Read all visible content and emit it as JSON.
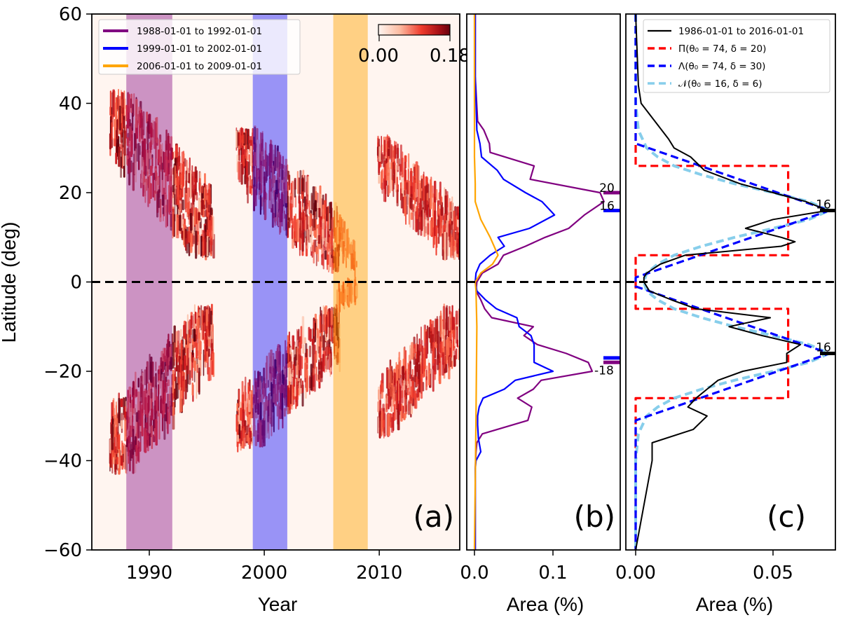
{
  "chart_data": [
    {
      "panel": "a",
      "type": "heatmap",
      "title": "",
      "xlabel": "Year",
      "ylabel": "Latitude (deg)",
      "xlim": [
        1985,
        2017
      ],
      "ylim": [
        -60,
        60
      ],
      "xticks": [
        "1990",
        "2000",
        "2010"
      ],
      "xtick_values": [
        1990,
        2000,
        2010
      ],
      "yticks": [
        "60",
        "40",
        "20",
        "0",
        "−20",
        "−40",
        "−60"
      ],
      "ytick_values": [
        60,
        40,
        20,
        0,
        -20,
        -40,
        -60
      ],
      "colorbar": {
        "min_label": "0.00",
        "max_label": "0.18",
        "min": 0.0,
        "max": 0.18,
        "colormap": "Reds"
      },
      "equator_line": 0,
      "shaded_intervals": [
        {
          "label": "1988-01-01 to 1992-01-01",
          "start": 1988.0,
          "end": 1992.0,
          "color": "#800080"
        },
        {
          "label": "1999-01-01 to 2002-01-01",
          "start": 1999.0,
          "end": 2002.0,
          "color": "#0000ff"
        },
        {
          "label": "2006-01-01 to 2009-01-01",
          "start": 2006.0,
          "end": 2009.0,
          "color": "#ffa500"
        }
      ],
      "activity_clusters": [
        {
          "t0": 1986.5,
          "t1": 1995.5,
          "north_lat": [
            8,
            40
          ],
          "south_lat": [
            -40,
            -8
          ],
          "intensity": 0.9
        },
        {
          "t0": 1997.5,
          "t1": 2006.5,
          "north_lat": [
            5,
            32
          ],
          "south_lat": [
            -35,
            -8
          ],
          "intensity": 0.85
        },
        {
          "t0": 2006.2,
          "t1": 2008.0,
          "north_lat": [
            4,
            14
          ],
          "south_lat": [
            -6,
            -2
          ],
          "intensity": 0.35
        },
        {
          "t0": 2009.8,
          "t1": 2017.0,
          "north_lat": [
            8,
            30
          ],
          "south_lat": [
            -32,
            -8
          ],
          "intensity": 0.75
        }
      ],
      "legend": [
        {
          "label": "1988-01-01 to 1992-01-01",
          "color": "#800080"
        },
        {
          "label": "1999-01-01 to 2002-01-01",
          "color": "#0000ff"
        },
        {
          "label": "2006-01-01 to 2009-01-01",
          "color": "#ffa500"
        }
      ],
      "panel_label": "(a)"
    },
    {
      "panel": "b",
      "type": "line",
      "xlabel": "Area (%)",
      "xlim": [
        -0.003,
        0.18
      ],
      "ylim": [
        -60,
        60
      ],
      "xticks": [
        "0.0",
        "0.1"
      ],
      "xtick_values": [
        0.0,
        0.1
      ],
      "series": [
        {
          "name": "1988-01-01 to 1992-01-01",
          "color": "#800080",
          "lat": [
            60,
            46,
            36,
            34,
            31,
            29,
            26,
            23,
            20,
            18,
            15,
            12,
            10,
            8,
            6,
            4,
            2,
            0,
            -2,
            -4,
            -6,
            -8,
            -10,
            -12,
            -14,
            -16,
            -18,
            -20,
            -22,
            -24,
            -26,
            -28,
            -31,
            -34,
            -36,
            -38,
            -42,
            -46,
            -50,
            -60
          ],
          "area": [
            0.001,
            0.001,
            0.004,
            0.012,
            0.019,
            0.02,
            0.076,
            0.071,
            0.16,
            0.165,
            0.14,
            0.12,
            0.09,
            0.065,
            0.037,
            0.03,
            0.01,
            0.003,
            0.002,
            0.008,
            0.013,
            0.022,
            0.075,
            0.063,
            0.08,
            0.117,
            0.145,
            0.15,
            0.085,
            0.075,
            0.055,
            0.073,
            0.068,
            0.01,
            0.003,
            0.002,
            0.001,
            0.001,
            0.001,
            0.001
          ]
        },
        {
          "name": "1999-01-01 to 2002-01-01",
          "color": "#0000ff",
          "lat": [
            60,
            46,
            34,
            31,
            28,
            25,
            23,
            20,
            18,
            15,
            12,
            10,
            8,
            6,
            4,
            2,
            0,
            -2,
            -4,
            -6,
            -8,
            -10,
            -12,
            -14,
            -16,
            -18,
            -20,
            -22,
            -24,
            -26,
            -28,
            -30,
            -32,
            -35,
            -38,
            -40,
            -42,
            -44,
            -60
          ],
          "area": [
            0.001,
            0.001,
            0.003,
            0.007,
            0.009,
            0.029,
            0.037,
            0.065,
            0.086,
            0.102,
            0.07,
            0.03,
            0.038,
            0.02,
            0.007,
            0.002,
            0.001,
            0.003,
            0.014,
            0.028,
            0.054,
            0.057,
            0.072,
            0.076,
            0.076,
            0.076,
            0.1,
            0.052,
            0.038,
            0.011,
            0.006,
            0.004,
            0.004,
            0.005,
            0.008,
            0.002,
            0.001,
            0.001,
            0.001
          ]
        },
        {
          "name": "2006-01-01 to 2009-01-01",
          "color": "#ffa500",
          "lat": [
            60,
            40,
            28,
            22,
            18,
            14,
            10,
            8,
            6,
            4,
            2,
            0,
            -2,
            -10,
            -30,
            -60
          ],
          "area": [
            0.0,
            0.0,
            0.0,
            0.001,
            0.001,
            0.008,
            0.02,
            0.025,
            0.03,
            0.023,
            0.008,
            0.001,
            0.002,
            0.003,
            0.002,
            0.0
          ]
        }
      ],
      "markers": [
        {
          "lat": 20,
          "label": "20",
          "color": "#800080"
        },
        {
          "lat": 16,
          "label": "16",
          "color": "#0000ff"
        },
        {
          "lat": -18,
          "label": "-18",
          "color": "#800080"
        },
        {
          "lat": -17,
          "label": "",
          "color": "#0000ff"
        }
      ],
      "equator_line": 0,
      "panel_label": "(b)"
    },
    {
      "panel": "c",
      "type": "line",
      "xlabel": "Area (%)",
      "xlim": [
        -0.0012,
        0.0735
      ],
      "ylim": [
        -60,
        60
      ],
      "xticks": [
        "0.00",
        "0.05"
      ],
      "xtick_values": [
        0.0,
        0.05
      ],
      "series": [
        {
          "name": "1986-01-01 to 2016-01-01",
          "color": "#000000",
          "style": "solid",
          "lat": [
            60,
            44,
            40,
            36,
            32,
            30,
            28,
            25,
            22,
            20,
            18,
            16,
            14,
            12,
            10,
            9,
            8,
            6,
            4,
            2,
            1,
            0,
            -2,
            -4,
            -6,
            -8,
            -10,
            -12,
            -14,
            -16,
            -18,
            -20,
            -22,
            -24,
            -26,
            -28,
            -30,
            -33,
            -36,
            -40,
            -60
          ],
          "area": [
            0.0,
            0.001,
            0.002,
            0.007,
            0.012,
            0.014,
            0.02,
            0.025,
            0.038,
            0.05,
            0.062,
            0.07,
            0.05,
            0.04,
            0.053,
            0.058,
            0.053,
            0.018,
            0.009,
            0.004,
            0.003,
            0.003,
            0.005,
            0.013,
            0.022,
            0.049,
            0.034,
            0.046,
            0.06,
            0.055,
            0.055,
            0.039,
            0.03,
            0.026,
            0.022,
            0.019,
            0.026,
            0.021,
            0.006,
            0.006,
            0.0
          ]
        },
        {
          "name": "Π(θ₀ = 74, δ = 20)",
          "color": "#ff0000",
          "style": "dashed",
          "lat": [
            60,
            26,
            26,
            6,
            6,
            -6,
            -6,
            -26,
            -26,
            -60
          ],
          "area": [
            0.0,
            0.0,
            0.0555,
            0.0555,
            0.0,
            0.0,
            0.0555,
            0.0555,
            0.0,
            0.0
          ]
        },
        {
          "name": "Λ(θ₀ = 74, δ = 30)",
          "color": "#0000ff",
          "style": "dashed",
          "lat": [
            60,
            31,
            16,
            1,
            0,
            -1,
            -16,
            -31,
            -60
          ],
          "area": [
            0.0,
            0.0,
            0.0705,
            0.0,
            0.0,
            0.0,
            0.0705,
            0.0,
            0.0
          ]
        },
        {
          "name": "𝒩(θ₀ = 16, δ = 6)",
          "color": "#87ceeb",
          "style": "dashed",
          "lat": [
            60,
            40,
            34,
            30,
            28,
            26,
            24,
            22,
            20,
            18,
            16,
            14,
            12,
            10,
            8,
            6,
            4,
            2,
            0,
            -2,
            -4,
            -6,
            -8,
            -10,
            -12,
            -14,
            -16,
            -18,
            -20,
            -22,
            -24,
            -26,
            -28,
            -30,
            -34,
            -40,
            -60
          ],
          "area": [
            0.0,
            0.0,
            0.001,
            0.004,
            0.008,
            0.014,
            0.024,
            0.036,
            0.05,
            0.063,
            0.0705,
            0.063,
            0.05,
            0.036,
            0.024,
            0.014,
            0.008,
            0.004,
            0.003,
            0.004,
            0.008,
            0.014,
            0.024,
            0.036,
            0.05,
            0.063,
            0.0705,
            0.063,
            0.05,
            0.036,
            0.024,
            0.014,
            0.008,
            0.004,
            0.001,
            0.0,
            0.0
          ]
        }
      ],
      "markers": [
        {
          "lat": 16,
          "label": "16",
          "color": "#000000"
        },
        {
          "lat": -16,
          "label": "16",
          "color": "#000000"
        }
      ],
      "equator_line": 0,
      "legend": [
        {
          "label": "1986-01-01 to 2016-01-01",
          "color": "#000000",
          "style": "solid"
        },
        {
          "label": "Π(θ₀ = 74, δ = 20)",
          "color": "#ff0000",
          "style": "dashed"
        },
        {
          "label": "Λ(θ₀ = 74, δ = 30)",
          "color": "#0000ff",
          "style": "dashed"
        },
        {
          "label": "𝒩(θ₀ = 16, δ = 6)",
          "color": "#87ceeb",
          "style": "dashed"
        }
      ],
      "legend_position": "top-right",
      "panel_label": "(c)"
    }
  ]
}
